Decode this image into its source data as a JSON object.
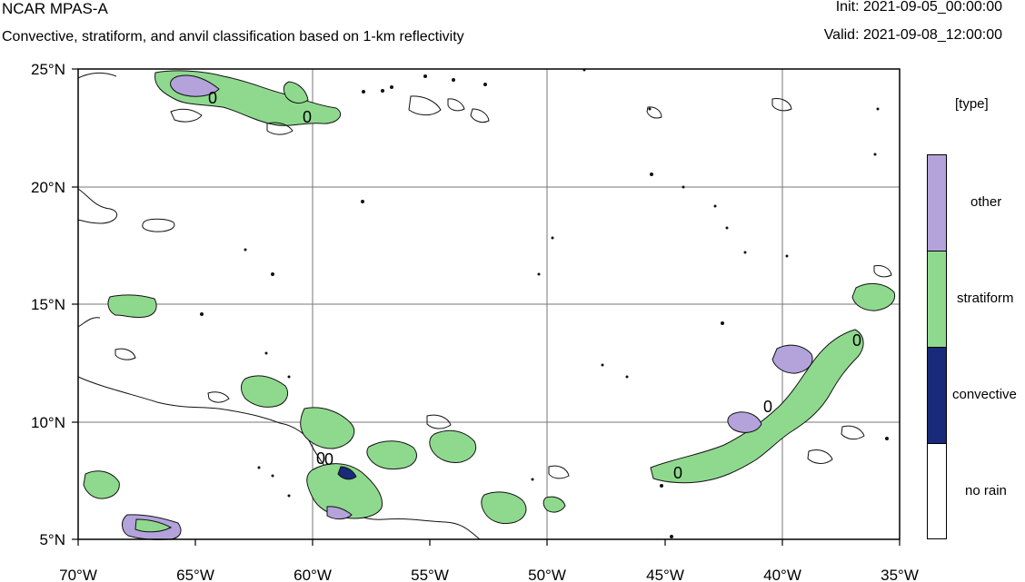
{
  "header": {
    "title": "NCAR MPAS-A",
    "subtitle": "Convective, stratiform, and anvil classification based on 1-km reflectivity",
    "init": "Init: 2021-09-05_00:00:00",
    "valid": "Valid: 2021-09-08_12:00:00"
  },
  "map": {
    "lat_labels": [
      "25°N",
      "20°N",
      "15°N",
      "10°N",
      "5°N"
    ],
    "lon_labels": [
      "70°W",
      "65°W",
      "60°W",
      "55°W",
      "50°W",
      "45°W",
      "40°W",
      "35°W"
    ],
    "contour_labels": [
      "0",
      "0",
      "0",
      "0",
      "0",
      "0",
      "0"
    ]
  },
  "legend": {
    "title": "[type]",
    "items": [
      {
        "label": "other",
        "color": "#b3a3da"
      },
      {
        "label": "stratiform",
        "color": "#8fd98f"
      },
      {
        "label": "convective",
        "color": "#1a2a7a"
      },
      {
        "label": "no rain",
        "color": "#ffffff"
      }
    ]
  }
}
